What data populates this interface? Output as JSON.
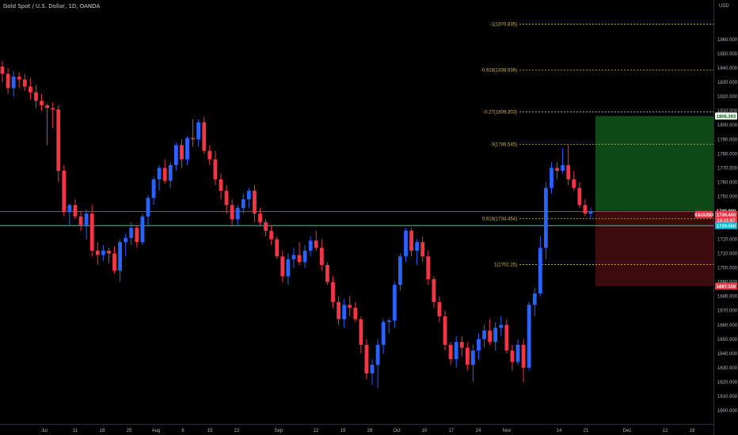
{
  "header": {
    "symbol_title": "Gold Spot / U.S. Dollar, 1D, OANDA"
  },
  "price_axis": {
    "currency": "USD",
    "ticks": [
      "1860.000",
      "1850.000",
      "1840.000",
      "1830.000",
      "1820.000",
      "1810.000",
      "1800.000",
      "1790.000",
      "1780.000",
      "1770.000",
      "1760.000",
      "1750.000",
      "1740.000",
      "1730.000",
      "1720.000",
      "1710.000",
      "1700.000",
      "1690.000",
      "1680.000",
      "1670.000",
      "1660.000",
      "1650.000",
      "1640.000",
      "1630.000",
      "1620.000",
      "1610.000",
      "1600.000"
    ],
    "badges": [
      {
        "text": "1806.393",
        "value": 1806.393,
        "bg": "#e8f5e9",
        "color": "#1b5e20"
      },
      {
        "text": "1740.000",
        "value": 1740.0,
        "bg": "#000000",
        "color": "#ffffff"
      },
      {
        "text": "XAUUSD",
        "value": 1737.4,
        "bg": "#f23645",
        "color": "#ffffff",
        "left": true
      },
      {
        "text": "1739.450",
        "value": 1737.4,
        "bg": "#f23645",
        "color": "#ffffff"
      },
      {
        "text": "13:21:57",
        "value": 1733.4,
        "bg": "#f23645",
        "color": "#ffffff"
      },
      {
        "text": "1729.550",
        "value": 1729.55,
        "bg": "#00bcd4",
        "color": "#ffffff"
      },
      {
        "text": "1687.159",
        "value": 1687.159,
        "bg": "#f23645",
        "color": "#ffffff"
      }
    ]
  },
  "time_axis": {
    "labels": [
      "Jul",
      "11",
      "18",
      "25",
      "Aug",
      "8",
      "15",
      "22",
      "Sep",
      "12",
      "19",
      "26",
      "Oct",
      "10",
      "17",
      "24",
      "Nov",
      "14",
      "21",
      "Dec",
      "12",
      "19"
    ]
  },
  "fibonacci": [
    {
      "label": "-1(1870.835)",
      "value": 1870.835
    },
    {
      "label": "-0.618(1838.636)",
      "value": 1838.636
    },
    {
      "label": "-0.27(1809.303)",
      "value": 1809.303
    },
    {
      "label": "0(1786.545)",
      "value": 1786.545
    },
    {
      "label": "0.618(1734.454)",
      "value": 1734.454
    },
    {
      "label": "1(1702.25)",
      "value": 1702.25
    }
  ],
  "position_tool": {
    "entry": 1740.0,
    "target": 1806.393,
    "stop": 1687.159,
    "profit_color": "#0d4a17",
    "loss_color": "#3d0b0b"
  },
  "horizontal_lines": {
    "cyan": 1729.55,
    "gray": 1739.45
  },
  "colors": {
    "up": "#2962ff",
    "down": "#f23645",
    "fib": "#d4b34a",
    "cyan": "#00bcd4"
  },
  "chart_data": {
    "type": "candlestick",
    "title": "Gold Spot / U.S. Dollar, 1D, OANDA",
    "ylabel": "USD",
    "ylim": [
      1594,
      1876
    ],
    "x_labels": [
      "Jul",
      "11",
      "18",
      "25",
      "Aug",
      "8",
      "15",
      "22",
      "Sep",
      "12",
      "19",
      "26",
      "Oct",
      "10",
      "17",
      "24",
      "Nov",
      "14",
      "21",
      "Dec",
      "12",
      "19"
    ],
    "ohlc": [
      [
        1841,
        1845,
        1830,
        1836
      ],
      [
        1836,
        1840,
        1822,
        1826
      ],
      [
        1826,
        1838,
        1820,
        1834
      ],
      [
        1834,
        1837,
        1826,
        1832
      ],
      [
        1832,
        1836,
        1824,
        1827
      ],
      [
        1827,
        1833,
        1818,
        1823
      ],
      [
        1823,
        1828,
        1812,
        1817
      ],
      [
        1817,
        1822,
        1810,
        1814
      ],
      [
        1814,
        1815,
        1786,
        1812
      ],
      [
        1812,
        1816,
        1798,
        1811
      ],
      [
        1811,
        1814,
        1760,
        1768
      ],
      [
        1768,
        1772,
        1736,
        1739
      ],
      [
        1739,
        1745,
        1730,
        1744
      ],
      [
        1744,
        1748,
        1734,
        1736
      ],
      [
        1736,
        1740,
        1726,
        1730
      ],
      [
        1730,
        1741,
        1720,
        1738
      ],
      [
        1738,
        1744,
        1708,
        1712
      ],
      [
        1712,
        1718,
        1702,
        1709
      ],
      [
        1709,
        1716,
        1705,
        1712
      ],
      [
        1712,
        1714,
        1703,
        1710
      ],
      [
        1710,
        1715,
        1696,
        1698
      ],
      [
        1698,
        1720,
        1690,
        1718
      ],
      [
        1718,
        1724,
        1708,
        1721
      ],
      [
        1721,
        1732,
        1716,
        1728
      ],
      [
        1728,
        1730,
        1714,
        1718
      ],
      [
        1718,
        1738,
        1716,
        1736
      ],
      [
        1736,
        1751,
        1730,
        1749
      ],
      [
        1749,
        1764,
        1744,
        1762
      ],
      [
        1762,
        1772,
        1754,
        1770
      ],
      [
        1770,
        1776,
        1759,
        1761
      ],
      [
        1761,
        1774,
        1756,
        1772
      ],
      [
        1772,
        1788,
        1768,
        1786
      ],
      [
        1786,
        1790,
        1770,
        1776
      ],
      [
        1776,
        1792,
        1772,
        1791
      ],
      [
        1791,
        1804,
        1785,
        1790
      ],
      [
        1790,
        1804,
        1785,
        1802
      ],
      [
        1802,
        1806,
        1780,
        1782
      ],
      [
        1782,
        1786,
        1772,
        1776
      ],
      [
        1776,
        1782,
        1758,
        1762
      ],
      [
        1762,
        1766,
        1748,
        1754
      ],
      [
        1754,
        1758,
        1738,
        1744
      ],
      [
        1744,
        1748,
        1730,
        1734
      ],
      [
        1734,
        1744,
        1730,
        1742
      ],
      [
        1742,
        1752,
        1738,
        1748
      ],
      [
        1748,
        1756,
        1742,
        1754
      ],
      [
        1754,
        1758,
        1732,
        1738
      ],
      [
        1738,
        1742,
        1730,
        1732
      ],
      [
        1732,
        1734,
        1722,
        1726
      ],
      [
        1726,
        1730,
        1716,
        1720
      ],
      [
        1720,
        1722,
        1706,
        1708
      ],
      [
        1708,
        1712,
        1690,
        1694
      ],
      [
        1694,
        1710,
        1688,
        1706
      ],
      [
        1706,
        1714,
        1700,
        1709
      ],
      [
        1709,
        1718,
        1702,
        1704
      ],
      [
        1704,
        1716,
        1700,
        1712
      ],
      [
        1712,
        1722,
        1708,
        1719
      ],
      [
        1719,
        1726,
        1712,
        1714
      ],
      [
        1714,
        1720,
        1698,
        1702
      ],
      [
        1702,
        1704,
        1688,
        1690
      ],
      [
        1690,
        1694,
        1672,
        1676
      ],
      [
        1676,
        1680,
        1660,
        1664
      ],
      [
        1664,
        1678,
        1658,
        1674
      ],
      [
        1674,
        1680,
        1666,
        1672
      ],
      [
        1672,
        1676,
        1662,
        1664
      ],
      [
        1664,
        1666,
        1640,
        1646
      ],
      [
        1646,
        1650,
        1622,
        1626
      ],
      [
        1626,
        1636,
        1618,
        1632
      ],
      [
        1632,
        1650,
        1616,
        1646
      ],
      [
        1646,
        1664,
        1640,
        1662
      ],
      [
        1662,
        1664,
        1654,
        1663
      ],
      [
        1663,
        1690,
        1658,
        1688
      ],
      [
        1688,
        1710,
        1684,
        1708
      ],
      [
        1708,
        1728,
        1704,
        1726
      ],
      [
        1726,
        1728,
        1708,
        1712
      ],
      [
        1712,
        1720,
        1702,
        1718
      ],
      [
        1718,
        1722,
        1704,
        1708
      ],
      [
        1708,
        1712,
        1688,
        1692
      ],
      [
        1692,
        1694,
        1672,
        1676
      ],
      [
        1676,
        1680,
        1662,
        1666
      ],
      [
        1666,
        1670,
        1642,
        1646
      ],
      [
        1646,
        1648,
        1632,
        1636
      ],
      [
        1636,
        1652,
        1630,
        1648
      ],
      [
        1648,
        1652,
        1638,
        1644
      ],
      [
        1644,
        1648,
        1628,
        1632
      ],
      [
        1632,
        1646,
        1620,
        1642
      ],
      [
        1642,
        1654,
        1636,
        1650
      ],
      [
        1650,
        1660,
        1644,
        1656
      ],
      [
        1656,
        1664,
        1646,
        1648
      ],
      [
        1648,
        1662,
        1642,
        1658
      ],
      [
        1658,
        1666,
        1652,
        1660
      ],
      [
        1660,
        1664,
        1640,
        1642
      ],
      [
        1642,
        1646,
        1628,
        1634
      ],
      [
        1634,
        1650,
        1632,
        1646
      ],
      [
        1646,
        1650,
        1620,
        1630
      ],
      [
        1630,
        1676,
        1628,
        1674
      ],
      [
        1674,
        1686,
        1666,
        1682
      ],
      [
        1682,
        1722,
        1680,
        1714
      ],
      [
        1714,
        1760,
        1706,
        1756
      ],
      [
        1756,
        1774,
        1752,
        1770
      ],
      [
        1770,
        1774,
        1762,
        1768
      ],
      [
        1768,
        1784,
        1766,
        1772
      ],
      [
        1772,
        1786,
        1758,
        1762
      ],
      [
        1762,
        1768,
        1754,
        1756
      ],
      [
        1756,
        1760,
        1742,
        1744
      ],
      [
        1744,
        1748,
        1736,
        1738
      ],
      [
        1738,
        1742,
        1734,
        1739.45
      ]
    ]
  }
}
